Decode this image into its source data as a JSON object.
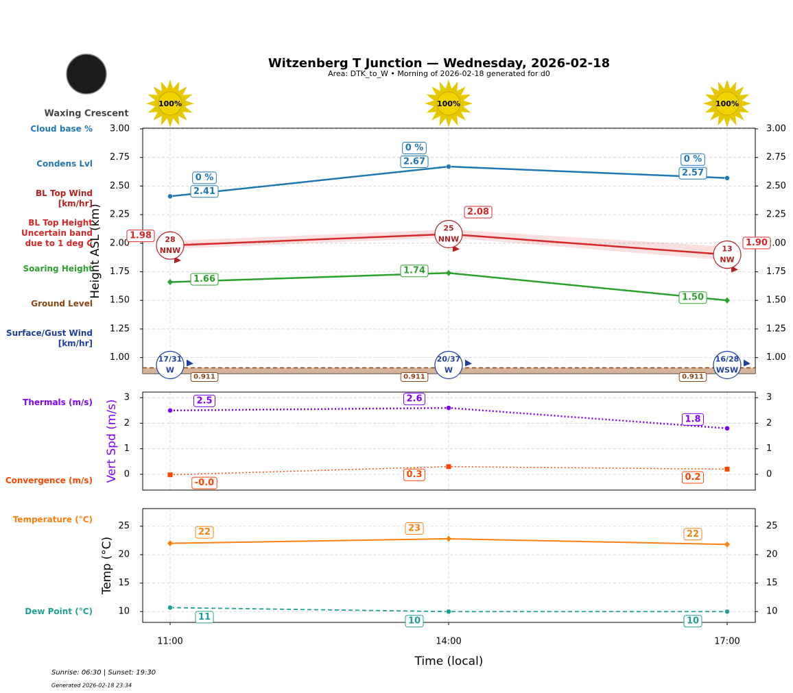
{
  "header": {
    "title": "Witzenberg T Junction — Wednesday, 2026-02-18",
    "subtitle": "Area: DTK_to_W • Morning of 2026-02-18 generated for d0",
    "moon_phase": "Waxing Crescent",
    "sun": {
      "values": [
        100,
        100,
        100
      ],
      "value_labels": [
        "100%",
        "100%",
        "100%"
      ]
    }
  },
  "chart_data": [
    {
      "type": "line",
      "y_label": "Height ASL (km)",
      "categories": [
        "11:00",
        "14:00",
        "17:00"
      ],
      "ylim": [
        0.86,
        3.0
      ],
      "yticks": [
        {
          "value": 1,
          "label": "1.00"
        },
        1.25,
        {
          "value": 1.5,
          "label": "1.50"
        },
        1.75,
        {
          "value": 2,
          "label": "2.00"
        },
        2.25,
        {
          "value": 2.5,
          "label": "2.50"
        },
        2.75,
        {
          "value": 3,
          "label": "3.00"
        }
      ],
      "grid": true,
      "series": [
        {
          "name": "Cloud base %",
          "type": "labels",
          "color": "#1f77b4",
          "values": [
            0,
            0,
            0
          ],
          "value_labels": [
            "0 %",
            "0 %",
            "0 %"
          ]
        },
        {
          "name": "Condens Lvl",
          "type": "line",
          "color": "#1f77b4",
          "linestyle": "solid",
          "linewidth": 2.5,
          "marker": "circle",
          "values": [
            2.41,
            2.67,
            2.57
          ]
        },
        {
          "name": "BL Top Wind\n[km/hr]",
          "type": "wind",
          "color": "#b22222",
          "values": [
            28,
            25,
            13
          ],
          "directions": [
            "NNW",
            "NNW",
            "NW"
          ]
        },
        {
          "name": "BL Top Height\nUncertain band\ndue to 1 deg C",
          "type": "line",
          "color": "#d62728",
          "linestyle": "solid",
          "linewidth": 2.5,
          "values": [
            1.98,
            2.08,
            1.9
          ],
          "value_labels": [
            "1.98",
            "2.08",
            "1.90"
          ],
          "band_low": [
            1.95,
            2.05,
            1.85
          ],
          "band_high": [
            2.02,
            2.12,
            1.97
          ]
        },
        {
          "name": "Soaring Height",
          "type": "line",
          "color": "#2ca02c",
          "linestyle": "solid",
          "linewidth": 2.5,
          "marker": "diamond",
          "values": [
            1.66,
            1.74,
            1.5
          ],
          "value_labels": [
            "1.66",
            "1.74",
            "1.50"
          ]
        },
        {
          "name": "Ground Level",
          "type": "area",
          "color": "#8b4513",
          "linestyle": "dashed",
          "linewidth": 1.5,
          "values": [
            0.911,
            0.911,
            0.911
          ]
        },
        {
          "name": "Surface/Gust Wind\n[km/hr]",
          "type": "wind",
          "color": "#1f3fa0",
          "values": [
            17,
            20,
            16
          ],
          "gusts": [
            31,
            37,
            28
          ],
          "value_labels": [
            "17/31",
            "20/37",
            "16/28"
          ],
          "directions": [
            "W",
            "W",
            "WSW"
          ]
        }
      ]
    },
    {
      "type": "line",
      "y_label": "Vert Spd (m/s)",
      "y_label_color": "#7f00ff",
      "categories": [
        "11:00",
        "14:00",
        "17:00"
      ],
      "ylim": [
        -0.62,
        3.22
      ],
      "yticks": [
        0,
        1,
        2,
        3
      ],
      "grid": true,
      "series": [
        {
          "name": "Thermals (m/s)",
          "type": "line",
          "color": "#7f00ff",
          "linestyle": "dotted",
          "linewidth": 2.5,
          "marker": "circle",
          "values": [
            2.5,
            2.6,
            1.8
          ]
        },
        {
          "name": "Convergence (m/s)",
          "type": "line",
          "color": "#ff4500",
          "linestyle": "dotted",
          "linewidth": 1.5,
          "marker": "square",
          "values": [
            -0.02,
            0.3,
            0.2
          ],
          "value_labels": [
            "-0.0",
            "0.3",
            "0.2"
          ]
        }
      ]
    },
    {
      "type": "line",
      "y_label": "Temp (°C)",
      "x_label": "Time (local)",
      "categories": [
        "11:00",
        "14:00",
        "17:00"
      ],
      "ylim": [
        8.1,
        28.1
      ],
      "yticks": [
        10,
        15,
        20,
        25
      ],
      "grid": true,
      "series": [
        {
          "name": "Temperature (°C)",
          "type": "line",
          "color": "#ff7f0e",
          "linestyle": "solid",
          "linewidth": 2,
          "marker": "diamond",
          "values": [
            22.0,
            22.8,
            21.8
          ],
          "value_labels": [
            "22",
            "23",
            "22"
          ]
        },
        {
          "name": "Dew Point (°C)",
          "type": "line",
          "color": "#20a090",
          "linestyle": "dashed",
          "linewidth": 1.8,
          "marker": "circle",
          "values": [
            10.7,
            10.0,
            10.0
          ],
          "value_labels": [
            "11",
            "10",
            "10"
          ]
        }
      ]
    }
  ],
  "footer": {
    "sun_times": "Sunrise: 06:30 | Sunset: 19:30",
    "generated": "Generated 2026-02-18 23:34"
  }
}
